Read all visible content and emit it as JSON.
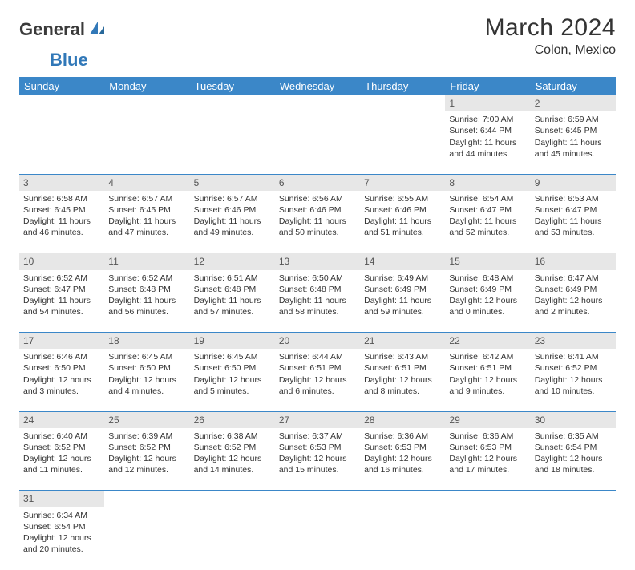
{
  "logo": {
    "part1": "General",
    "part2": "Blue"
  },
  "title": "March 2024",
  "location": "Colon, Mexico",
  "colors": {
    "header_bg": "#3b87c8",
    "header_fg": "#ffffff",
    "daynum_bg": "#e7e7e7",
    "rule": "#3b87c8",
    "logo_accent": "#3178b8"
  },
  "weekdays": [
    "Sunday",
    "Monday",
    "Tuesday",
    "Wednesday",
    "Thursday",
    "Friday",
    "Saturday"
  ],
  "weeks": [
    [
      null,
      null,
      null,
      null,
      null,
      {
        "n": "1",
        "sr": "Sunrise: 7:00 AM",
        "ss": "Sunset: 6:44 PM",
        "dl": "Daylight: 11 hours and 44 minutes."
      },
      {
        "n": "2",
        "sr": "Sunrise: 6:59 AM",
        "ss": "Sunset: 6:45 PM",
        "dl": "Daylight: 11 hours and 45 minutes."
      }
    ],
    [
      {
        "n": "3",
        "sr": "Sunrise: 6:58 AM",
        "ss": "Sunset: 6:45 PM",
        "dl": "Daylight: 11 hours and 46 minutes."
      },
      {
        "n": "4",
        "sr": "Sunrise: 6:57 AM",
        "ss": "Sunset: 6:45 PM",
        "dl": "Daylight: 11 hours and 47 minutes."
      },
      {
        "n": "5",
        "sr": "Sunrise: 6:57 AM",
        "ss": "Sunset: 6:46 PM",
        "dl": "Daylight: 11 hours and 49 minutes."
      },
      {
        "n": "6",
        "sr": "Sunrise: 6:56 AM",
        "ss": "Sunset: 6:46 PM",
        "dl": "Daylight: 11 hours and 50 minutes."
      },
      {
        "n": "7",
        "sr": "Sunrise: 6:55 AM",
        "ss": "Sunset: 6:46 PM",
        "dl": "Daylight: 11 hours and 51 minutes."
      },
      {
        "n": "8",
        "sr": "Sunrise: 6:54 AM",
        "ss": "Sunset: 6:47 PM",
        "dl": "Daylight: 11 hours and 52 minutes."
      },
      {
        "n": "9",
        "sr": "Sunrise: 6:53 AM",
        "ss": "Sunset: 6:47 PM",
        "dl": "Daylight: 11 hours and 53 minutes."
      }
    ],
    [
      {
        "n": "10",
        "sr": "Sunrise: 6:52 AM",
        "ss": "Sunset: 6:47 PM",
        "dl": "Daylight: 11 hours and 54 minutes."
      },
      {
        "n": "11",
        "sr": "Sunrise: 6:52 AM",
        "ss": "Sunset: 6:48 PM",
        "dl": "Daylight: 11 hours and 56 minutes."
      },
      {
        "n": "12",
        "sr": "Sunrise: 6:51 AM",
        "ss": "Sunset: 6:48 PM",
        "dl": "Daylight: 11 hours and 57 minutes."
      },
      {
        "n": "13",
        "sr": "Sunrise: 6:50 AM",
        "ss": "Sunset: 6:48 PM",
        "dl": "Daylight: 11 hours and 58 minutes."
      },
      {
        "n": "14",
        "sr": "Sunrise: 6:49 AM",
        "ss": "Sunset: 6:49 PM",
        "dl": "Daylight: 11 hours and 59 minutes."
      },
      {
        "n": "15",
        "sr": "Sunrise: 6:48 AM",
        "ss": "Sunset: 6:49 PM",
        "dl": "Daylight: 12 hours and 0 minutes."
      },
      {
        "n": "16",
        "sr": "Sunrise: 6:47 AM",
        "ss": "Sunset: 6:49 PM",
        "dl": "Daylight: 12 hours and 2 minutes."
      }
    ],
    [
      {
        "n": "17",
        "sr": "Sunrise: 6:46 AM",
        "ss": "Sunset: 6:50 PM",
        "dl": "Daylight: 12 hours and 3 minutes."
      },
      {
        "n": "18",
        "sr": "Sunrise: 6:45 AM",
        "ss": "Sunset: 6:50 PM",
        "dl": "Daylight: 12 hours and 4 minutes."
      },
      {
        "n": "19",
        "sr": "Sunrise: 6:45 AM",
        "ss": "Sunset: 6:50 PM",
        "dl": "Daylight: 12 hours and 5 minutes."
      },
      {
        "n": "20",
        "sr": "Sunrise: 6:44 AM",
        "ss": "Sunset: 6:51 PM",
        "dl": "Daylight: 12 hours and 6 minutes."
      },
      {
        "n": "21",
        "sr": "Sunrise: 6:43 AM",
        "ss": "Sunset: 6:51 PM",
        "dl": "Daylight: 12 hours and 8 minutes."
      },
      {
        "n": "22",
        "sr": "Sunrise: 6:42 AM",
        "ss": "Sunset: 6:51 PM",
        "dl": "Daylight: 12 hours and 9 minutes."
      },
      {
        "n": "23",
        "sr": "Sunrise: 6:41 AM",
        "ss": "Sunset: 6:52 PM",
        "dl": "Daylight: 12 hours and 10 minutes."
      }
    ],
    [
      {
        "n": "24",
        "sr": "Sunrise: 6:40 AM",
        "ss": "Sunset: 6:52 PM",
        "dl": "Daylight: 12 hours and 11 minutes."
      },
      {
        "n": "25",
        "sr": "Sunrise: 6:39 AM",
        "ss": "Sunset: 6:52 PM",
        "dl": "Daylight: 12 hours and 12 minutes."
      },
      {
        "n": "26",
        "sr": "Sunrise: 6:38 AM",
        "ss": "Sunset: 6:52 PM",
        "dl": "Daylight: 12 hours and 14 minutes."
      },
      {
        "n": "27",
        "sr": "Sunrise: 6:37 AM",
        "ss": "Sunset: 6:53 PM",
        "dl": "Daylight: 12 hours and 15 minutes."
      },
      {
        "n": "28",
        "sr": "Sunrise: 6:36 AM",
        "ss": "Sunset: 6:53 PM",
        "dl": "Daylight: 12 hours and 16 minutes."
      },
      {
        "n": "29",
        "sr": "Sunrise: 6:36 AM",
        "ss": "Sunset: 6:53 PM",
        "dl": "Daylight: 12 hours and 17 minutes."
      },
      {
        "n": "30",
        "sr": "Sunrise: 6:35 AM",
        "ss": "Sunset: 6:54 PM",
        "dl": "Daylight: 12 hours and 18 minutes."
      }
    ],
    [
      {
        "n": "31",
        "sr": "Sunrise: 6:34 AM",
        "ss": "Sunset: 6:54 PM",
        "dl": "Daylight: 12 hours and 20 minutes."
      },
      null,
      null,
      null,
      null,
      null,
      null
    ]
  ]
}
